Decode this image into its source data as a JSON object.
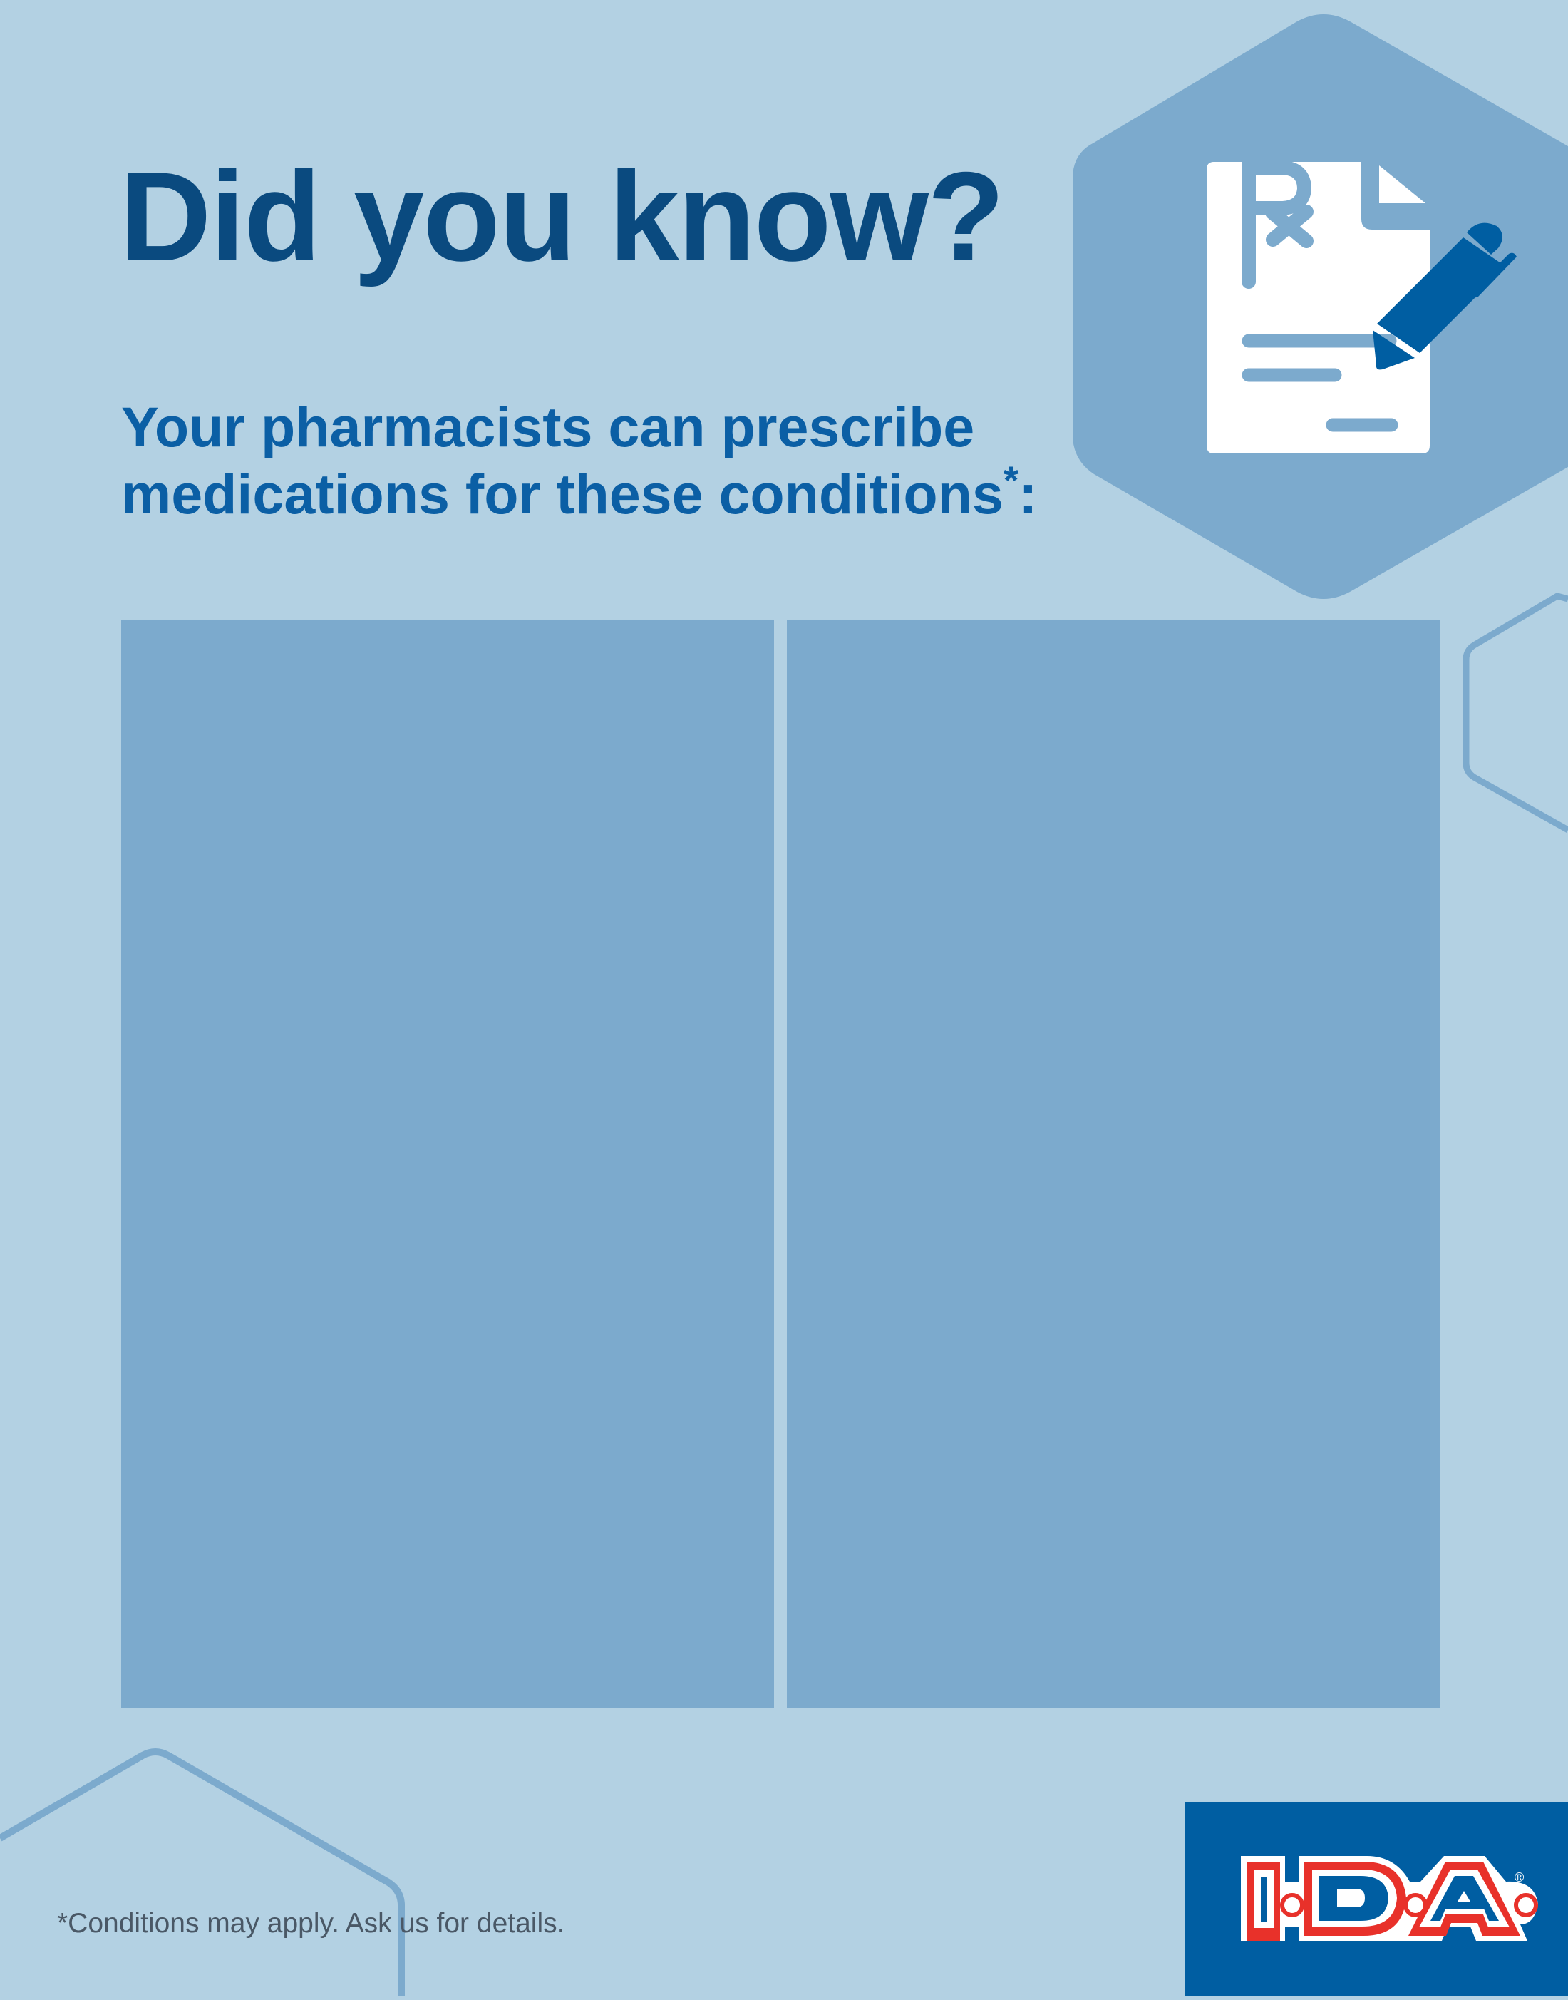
{
  "header": {
    "title": "Did you know?",
    "subtitle_line1": "Your pharmacists can prescribe",
    "subtitle_line2": "medications for these conditions",
    "subtitle_mark": "*",
    "subtitle_end": ":"
  },
  "icon": {
    "name": "prescription-document-pen-icon",
    "text": "Rx"
  },
  "panels": [
    {
      "name": "conditions-panel-left"
    },
    {
      "name": "conditions-panel-right"
    }
  ],
  "footer": {
    "disclaimer": "*Conditions may apply. Ask us for details."
  },
  "logo": {
    "text": "I·D·A",
    "registered": "®"
  },
  "colors": {
    "background": "#b3d1e3",
    "panel": "#7caacd",
    "title": "#0a4a7f",
    "subtitle": "#0b5fa5",
    "brand_blue": "#005ea2",
    "brand_red": "#e8312a"
  }
}
